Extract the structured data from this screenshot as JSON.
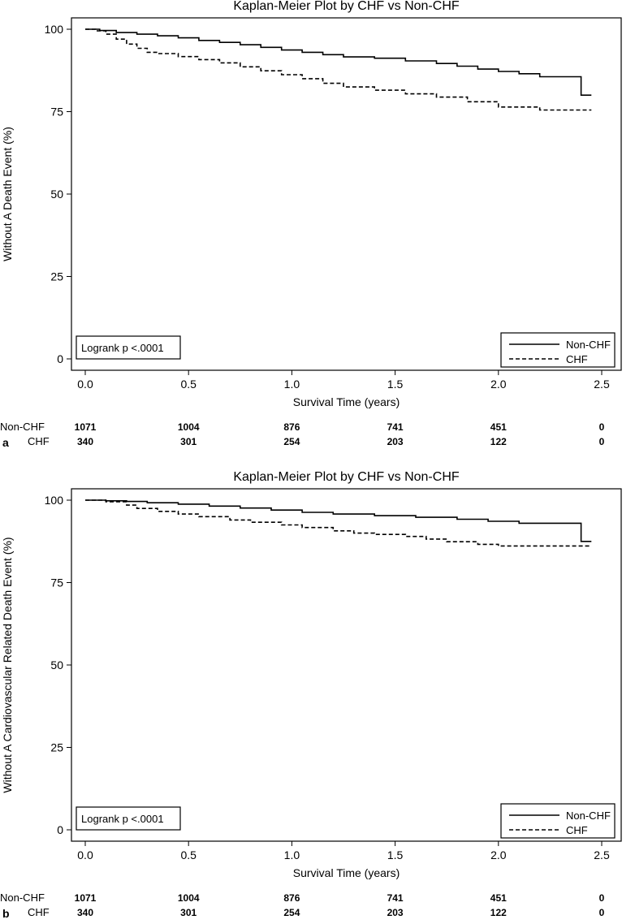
{
  "colors": {
    "line": "#000000",
    "background": "#ffffff"
  },
  "chart_data": [
    {
      "panel_label": "a",
      "type": "line",
      "title": "Kaplan-Meier Plot by CHF vs Non-CHF",
      "xlabel": "Survival Time (years)",
      "ylabel": "Without A Death Event (%)",
      "xlim": [
        0,
        2.5
      ],
      "ylim": [
        0,
        100
      ],
      "xticks": [
        0.0,
        0.5,
        1.0,
        1.5,
        2.0,
        2.5
      ],
      "xtick_labels": [
        "0.0",
        "0.5",
        "1.0",
        "1.5",
        "2.0",
        "2.5"
      ],
      "yticks": [
        0,
        25,
        50,
        75,
        100
      ],
      "ytick_labels": [
        "0",
        "25",
        "50",
        "75",
        "100"
      ],
      "grid": false,
      "annotation": "Logrank p <.0001",
      "legend_position": "bottom-right",
      "series": [
        {
          "name": "Non-CHF",
          "style": "solid",
          "x": [
            0,
            0.07,
            0.15,
            0.25,
            0.35,
            0.45,
            0.55,
            0.65,
            0.75,
            0.85,
            0.95,
            1.05,
            1.15,
            1.25,
            1.4,
            1.55,
            1.7,
            1.8,
            1.9,
            2.0,
            2.1,
            2.2,
            2.4,
            2.45
          ],
          "y": [
            100,
            99.6,
            99,
            98.5,
            98,
            97.4,
            96.6,
            96,
            95.3,
            94.5,
            93.7,
            93,
            92.3,
            91.6,
            91.2,
            90.4,
            89.6,
            88.8,
            87.9,
            87.2,
            86.5,
            85.6,
            80.0,
            80.0
          ]
        },
        {
          "name": "CHF",
          "style": "dashed",
          "x": [
            0,
            0.05,
            0.1,
            0.15,
            0.2,
            0.25,
            0.3,
            0.35,
            0.45,
            0.55,
            0.65,
            0.75,
            0.85,
            0.95,
            1.05,
            1.15,
            1.25,
            1.4,
            1.55,
            1.7,
            1.85,
            2.0,
            2.2,
            2.45
          ],
          "y": [
            100,
            99.5,
            98.5,
            97,
            95.5,
            94.2,
            93,
            92.6,
            91.7,
            90.8,
            89.8,
            88.6,
            87.4,
            86.2,
            85,
            83.6,
            82.5,
            81.5,
            80.4,
            79.4,
            78,
            76.4,
            75.5,
            75.5
          ]
        }
      ],
      "at_risk": [
        {
          "label": "Non-CHF",
          "values": [
            "1071",
            "1004",
            "876",
            "741",
            "451",
            "0"
          ]
        },
        {
          "label": "CHF",
          "values": [
            "340",
            "301",
            "254",
            "203",
            "122",
            "0"
          ]
        }
      ]
    },
    {
      "panel_label": "b",
      "type": "line",
      "title": "Kaplan-Meier Plot by CHF vs Non-CHF",
      "xlabel": "Survival Time (years)",
      "ylabel": "Without A Cardiovascular Related Death Event (%)",
      "xlim": [
        0,
        2.5
      ],
      "ylim": [
        0,
        100
      ],
      "xticks": [
        0.0,
        0.5,
        1.0,
        1.5,
        2.0,
        2.5
      ],
      "xtick_labels": [
        "0.0",
        "0.5",
        "1.0",
        "1.5",
        "2.0",
        "2.5"
      ],
      "yticks": [
        0,
        25,
        50,
        75,
        100
      ],
      "ytick_labels": [
        "0",
        "25",
        "50",
        "75",
        "100"
      ],
      "grid": false,
      "annotation": "Logrank p <.0001",
      "legend_position": "bottom-right",
      "series": [
        {
          "name": "Non-CHF",
          "style": "solid",
          "x": [
            0,
            0.1,
            0.2,
            0.3,
            0.45,
            0.6,
            0.75,
            0.9,
            1.05,
            1.2,
            1.4,
            1.6,
            1.8,
            1.95,
            2.1,
            2.4,
            2.45
          ],
          "y": [
            100,
            99.8,
            99.6,
            99.2,
            98.8,
            98.2,
            97.6,
            97,
            96.3,
            95.8,
            95.3,
            94.8,
            94.2,
            93.6,
            93,
            87.5,
            87.5
          ]
        },
        {
          "name": "CHF",
          "style": "dashed",
          "x": [
            0,
            0.1,
            0.2,
            0.25,
            0.35,
            0.45,
            0.55,
            0.7,
            0.8,
            0.95,
            1.05,
            1.2,
            1.3,
            1.4,
            1.55,
            1.65,
            1.75,
            1.9,
            2.0,
            2.45
          ],
          "y": [
            100,
            99.5,
            98.5,
            97.5,
            96.6,
            95.8,
            95,
            94,
            93.3,
            92.5,
            91.7,
            90.7,
            90,
            89.6,
            89,
            88.2,
            87.4,
            86.6,
            86.1,
            86.1
          ]
        }
      ],
      "at_risk": [
        {
          "label": "Non-CHF",
          "values": [
            "1071",
            "1004",
            "876",
            "741",
            "451",
            "0"
          ]
        },
        {
          "label": "CHF",
          "values": [
            "340",
            "301",
            "254",
            "203",
            "122",
            "0"
          ]
        }
      ]
    }
  ]
}
